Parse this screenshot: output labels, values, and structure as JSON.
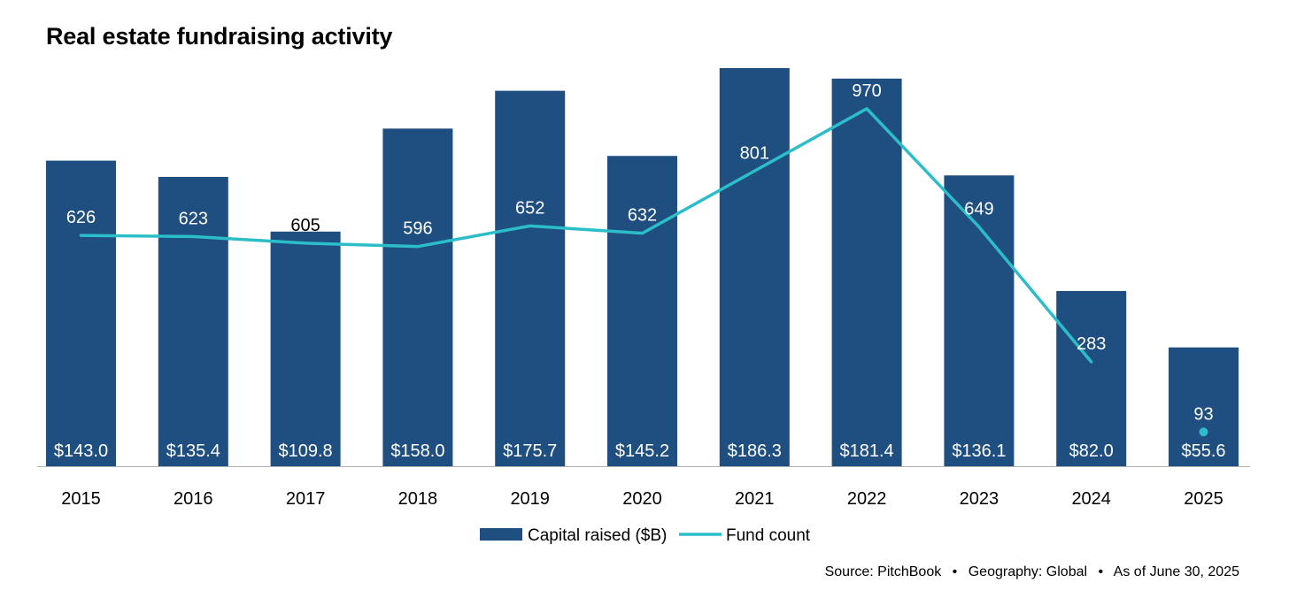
{
  "title": "Real estate fundraising activity",
  "source": {
    "items": [
      "Source: PitchBook",
      "Geography: Global",
      "As of June 30, 2025"
    ],
    "separator": "•"
  },
  "colors": {
    "bar": "#1f4e80",
    "line": "#2bbec9",
    "axis": "#b0b0b0",
    "bar_label": "#ffffff",
    "text": "#000000"
  },
  "chart_data": {
    "type": "bar",
    "categories": [
      "2015",
      "2016",
      "2017",
      "2018",
      "2019",
      "2020",
      "2021",
      "2022",
      "2023",
      "2024",
      "2025"
    ],
    "series": [
      {
        "name": "Capital raised ($B)",
        "type": "bar",
        "values": [
          143.0,
          135.4,
          109.8,
          158.0,
          175.7,
          145.2,
          186.3,
          181.4,
          136.1,
          82.0,
          55.6
        ],
        "labels": [
          "$143.0",
          "$135.4",
          "$109.8",
          "$158.0",
          "$175.7",
          "$145.2",
          "$186.3",
          "$181.4",
          "$136.1",
          "$82.0",
          "$55.6"
        ],
        "ylim": [
          0,
          186.3
        ]
      },
      {
        "name": "Fund count",
        "type": "line",
        "values": [
          626,
          623,
          605,
          596,
          652,
          632,
          801,
          970,
          649,
          283,
          93
        ],
        "labels": [
          "626",
          "623",
          "605",
          "596",
          "652",
          "632",
          "801",
          "970",
          "649",
          "283",
          "93"
        ],
        "line_break_before_last": true,
        "ylim": [
          0,
          1080
        ]
      }
    ],
    "title": "Real estate fundraising activity",
    "xlabel": "",
    "ylabel": "",
    "grid": false,
    "legend": "bottom-center"
  }
}
